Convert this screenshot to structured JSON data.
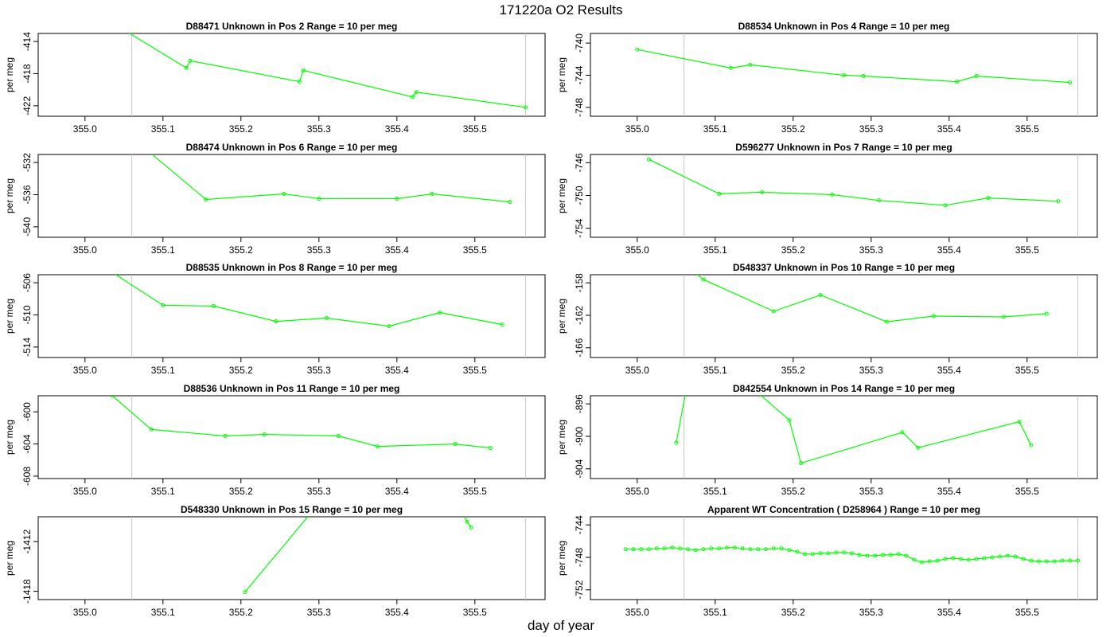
{
  "figure": {
    "title": "171220a  O2 Results",
    "xlabel": "day of year"
  },
  "colors": {
    "series": "#00ff00",
    "vline": "#c8c8c8",
    "frame": "#000000"
  },
  "chart_data": [
    {
      "type": "line",
      "title": "D88471    Unknown in Pos 2         Range = 10 per meg",
      "ylabel": "per meg",
      "xlim": [
        354.94,
        355.59
      ],
      "ylim": [
        -423.3,
        -413.0
      ],
      "xticks": [
        "355.0",
        "355.1",
        "355.2",
        "355.3",
        "355.4",
        "355.5"
      ],
      "yticks": [
        "-414",
        "-418",
        "-422"
      ],
      "vlines": [
        355.06,
        355.565
      ],
      "x": [
        355.0,
        355.13,
        355.135,
        355.275,
        355.28,
        355.42,
        355.425,
        355.565
      ],
      "y": [
        -409.6,
        -417.3,
        -416.4,
        -419.0,
        -417.6,
        -420.9,
        -420.3,
        -422.2
      ]
    },
    {
      "type": "line",
      "title": "D88534    Unknown in Pos 4         Range = 10 per meg",
      "ylabel": "per meg",
      "xlim": [
        354.94,
        355.59
      ],
      "ylim": [
        -749.1,
        -738.8
      ],
      "xticks": [
        "355.0",
        "355.1",
        "355.2",
        "355.3",
        "355.4",
        "355.5"
      ],
      "yticks": [
        "-740",
        "-744",
        "-748"
      ],
      "vlines": [
        355.06,
        355.565
      ],
      "x": [
        355.0,
        355.12,
        355.145,
        355.265,
        355.29,
        355.41,
        355.435,
        355.555
      ],
      "y": [
        -740.8,
        -743.1,
        -742.7,
        -744.0,
        -744.1,
        -744.8,
        -744.1,
        -744.9
      ]
    },
    {
      "type": "line",
      "title": "D88474    Unknown in Pos 6         Range = 10 per meg",
      "ylabel": "per meg",
      "xlim": [
        354.94,
        355.59
      ],
      "ylim": [
        -541.3,
        -531.0
      ],
      "xticks": [
        "355.0",
        "355.1",
        "355.2",
        "355.3",
        "355.4",
        "355.5"
      ],
      "yticks": [
        "-532",
        "-536",
        "-540"
      ],
      "vlines": [
        355.06,
        355.565
      ],
      "x": [
        355.0,
        355.155,
        355.255,
        355.3,
        355.4,
        355.445,
        355.545
      ],
      "y": [
        -524.0,
        -536.6,
        -535.9,
        -536.5,
        -536.5,
        -535.9,
        -536.9
      ]
    },
    {
      "type": "line",
      "title": "D596277    Unknown in Pos 7         Range = 10 per meg",
      "ylabel": "per meg",
      "xlim": [
        354.94,
        355.59
      ],
      "ylim": [
        -755.1,
        -745.0
      ],
      "xticks": [
        "355.0",
        "355.1",
        "355.2",
        "355.3",
        "355.4",
        "355.5"
      ],
      "yticks": [
        "-746",
        "-750",
        "-754"
      ],
      "vlines": [
        355.06,
        355.565
      ],
      "x": [
        355.015,
        355.105,
        355.16,
        355.25,
        355.31,
        355.395,
        355.45,
        355.54
      ],
      "y": [
        -745.6,
        -749.8,
        -749.6,
        -749.9,
        -750.6,
        -751.2,
        -750.3,
        -750.7
      ]
    },
    {
      "type": "line",
      "title": "D88535    Unknown in Pos 8         Range = 10 per meg",
      "ylabel": "per meg",
      "xlim": [
        354.94,
        355.59
      ],
      "ylim": [
        -515.3,
        -505.0
      ],
      "xticks": [
        "355.0",
        "355.1",
        "355.2",
        "355.3",
        "355.4",
        "355.5"
      ],
      "yticks": [
        "-506",
        "-510",
        "-514"
      ],
      "vlines": [
        355.06,
        355.565
      ],
      "x": [
        355.0,
        355.1,
        355.165,
        355.245,
        355.31,
        355.39,
        355.455,
        355.535
      ],
      "y": [
        -502.5,
        -508.8,
        -508.9,
        -510.8,
        -510.4,
        -511.4,
        -509.7,
        -511.2
      ]
    },
    {
      "type": "line",
      "title": "D548337    Unknown in Pos 10         Range = 10 per meg",
      "ylabel": "per meg",
      "xlim": [
        354.94,
        355.59
      ],
      "ylim": [
        -167.2,
        -157.0
      ],
      "xticks": [
        "355.0",
        "355.1",
        "355.2",
        "355.3",
        "355.4",
        "355.5"
      ],
      "yticks": [
        "-158",
        "-162",
        "-166"
      ],
      "vlines": [
        355.06,
        355.565
      ],
      "x": [
        355.0,
        355.085,
        355.175,
        355.235,
        355.32,
        355.38,
        355.47,
        355.525
      ],
      "y": [
        -151.0,
        -157.6,
        -161.5,
        -159.5,
        -162.8,
        -162.1,
        -162.2,
        -161.8
      ]
    },
    {
      "type": "line",
      "title": "D88536    Unknown in Pos 11         Range = 10 per meg",
      "ylabel": "per meg",
      "xlim": [
        354.94,
        355.59
      ],
      "ylim": [
        -608.3,
        -598.0
      ],
      "xticks": [
        "355.0",
        "355.1",
        "355.2",
        "355.3",
        "355.4",
        "355.5"
      ],
      "yticks": [
        "-600",
        "-604",
        "-608"
      ],
      "vlines": [
        355.06,
        355.565
      ],
      "x": [
        355.035,
        355.085,
        355.18,
        355.23,
        355.325,
        355.375,
        355.475,
        355.52
      ],
      "y": [
        -598.0,
        -602.2,
        -603.0,
        -602.8,
        -603.0,
        -604.3,
        -604.0,
        -604.5
      ]
    },
    {
      "type": "line",
      "title": "D842554    Unknown in Pos 14         Range = 10 per meg",
      "ylabel": "per meg",
      "xlim": [
        354.94,
        355.59
      ],
      "ylim": [
        -905.2,
        -895.0
      ],
      "xticks": [
        "355.0",
        "355.1",
        "355.2",
        "355.3",
        "355.4",
        "355.5"
      ],
      "yticks": [
        "-896",
        "-900",
        "-904"
      ],
      "vlines": [
        355.06,
        355.565
      ],
      "x": [
        355.05,
        355.075,
        355.195,
        355.21,
        355.34,
        355.36,
        355.49,
        355.505
      ],
      "y": [
        -900.8,
        -888.0,
        -898.0,
        -903.3,
        -899.5,
        -901.4,
        -898.2,
        -901.1
      ]
    },
    {
      "type": "line",
      "title": "D548330    Unknown in Pos 15         Range = 10 per meg",
      "ylabel": "per meg",
      "xlim": [
        354.94,
        355.59
      ],
      "ylim": [
        -1419.0,
        -1409.0
      ],
      "xticks": [
        "355.0",
        "355.1",
        "355.2",
        "355.3",
        "355.4",
        "355.5"
      ],
      "yticks": [
        "-1412",
        "-1418"
      ],
      "vlines": [
        355.06,
        355.565
      ],
      "x": [
        355.205,
        355.33,
        355.48,
        355.49,
        355.495
      ],
      "y": [
        -1418.1,
        -1404.0,
        -1408.0,
        -1409.6,
        -1410.3
      ]
    },
    {
      "type": "line",
      "title": "Apparent WT Concentration ( D258964 )         Range = 10 per meg",
      "ylabel": "per meg",
      "xlim": [
        354.94,
        355.59
      ],
      "ylim": [
        -753.2,
        -743.0
      ],
      "xticks": [
        "355.0",
        "355.1",
        "355.2",
        "355.3",
        "355.4",
        "355.5"
      ],
      "yticks": [
        "-744",
        "-748",
        "-752"
      ],
      "vlines": [
        355.06,
        355.565
      ],
      "x": [
        354.985,
        354.995,
        355.005,
        355.015,
        355.025,
        355.035,
        355.045,
        355.055,
        355.065,
        355.075,
        355.085,
        355.095,
        355.105,
        355.115,
        355.125,
        355.135,
        355.145,
        355.155,
        355.165,
        355.175,
        355.185,
        355.195,
        355.205,
        355.215,
        355.225,
        355.235,
        355.245,
        355.255,
        355.265,
        355.275,
        355.285,
        355.295,
        355.305,
        355.315,
        355.325,
        355.335,
        355.345,
        355.355,
        355.365,
        355.375,
        355.385,
        355.395,
        355.405,
        355.415,
        355.425,
        355.435,
        355.445,
        355.455,
        355.465,
        355.475,
        355.485,
        355.495,
        355.505,
        355.515,
        355.525,
        355.535,
        355.545,
        355.555,
        355.565
      ],
      "y": [
        -747.0,
        -747.0,
        -747.0,
        -747.0,
        -746.9,
        -746.9,
        -746.8,
        -746.9,
        -747.0,
        -747.1,
        -747.0,
        -746.9,
        -746.9,
        -746.8,
        -746.8,
        -746.9,
        -747.0,
        -747.0,
        -747.0,
        -746.9,
        -746.9,
        -747.1,
        -747.3,
        -747.6,
        -747.6,
        -747.5,
        -747.5,
        -747.4,
        -747.4,
        -747.5,
        -747.7,
        -747.8,
        -747.8,
        -747.7,
        -747.7,
        -747.6,
        -747.8,
        -748.3,
        -748.6,
        -748.5,
        -748.4,
        -748.2,
        -748.1,
        -748.2,
        -748.3,
        -748.2,
        -748.1,
        -748.0,
        -747.9,
        -747.8,
        -747.9,
        -748.2,
        -748.4,
        -748.5,
        -748.5,
        -748.5,
        -748.4,
        -748.4,
        -748.4
      ]
    }
  ]
}
